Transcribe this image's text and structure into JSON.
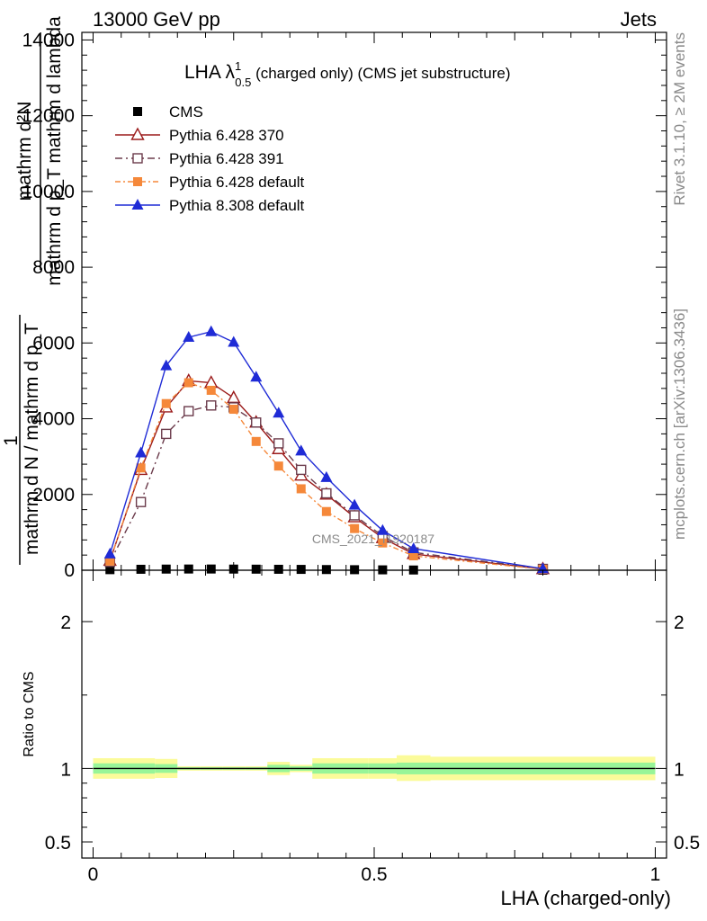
{
  "header": {
    "left": "13000 GeV pp",
    "right": "Jets"
  },
  "side_text": {
    "rivet": "Rivet 3.1.10, ≥ 2M events",
    "mcplots": "mcplots.cern.ch [arXiv:1306.3436]"
  },
  "watermark": "CMS_2021_I1920187",
  "plot_title": {
    "prefix": "LHA ",
    "lambda": "λ",
    "sup": "1",
    "sub": "0.5",
    "suffix": " (charged only) (CMS jet substructure)"
  },
  "ylabel_main": {
    "numerator": "mathrm d²N",
    "denominator": "mathrm d p_T mathrm d lambda",
    "numerator2": "1",
    "denominator2": "mathrm d N / mathrm d p_T"
  },
  "ylabel_ratio": "Ratio to CMS",
  "xlabel": "LHA (charged-only)",
  "colors": {
    "cms": "#000000",
    "py6_370": "#9b1b1b",
    "py6_391": "#6b3b4b",
    "py6_default": "#f5883a",
    "py8_default": "#1f2bd6",
    "band_inner": "#98f598",
    "band_outer": "#fbfb9a"
  },
  "chart_data": [
    {
      "type": "line",
      "xlim": [
        -0.02,
        1.02
      ],
      "ylim": [
        0,
        14200
      ],
      "xticks": [
        0,
        0.5,
        1
      ],
      "yticks": [
        0,
        2000,
        4000,
        6000,
        8000,
        10000,
        12000,
        14000
      ],
      "ytick_labels": [
        "0",
        "2000",
        "4000",
        "6000",
        "8000",
        "10000",
        "12000",
        "14000"
      ],
      "x": [
        0.03,
        0.085,
        0.13,
        0.17,
        0.21,
        0.25,
        0.29,
        0.33,
        0.37,
        0.415,
        0.465,
        0.515,
        0.57,
        0.8
      ],
      "series": [
        {
          "name": "CMS",
          "key": "cms",
          "marker": "square-filled",
          "dash": "",
          "values": [
            15,
            25,
            30,
            32,
            32,
            30,
            28,
            25,
            22,
            18,
            14,
            10,
            6,
            1
          ]
        },
        {
          "name": "Pythia 6.428 370",
          "key": "py6_370",
          "marker": "triangle-open",
          "dash": "",
          "values": [
            250,
            2650,
            4300,
            5000,
            4950,
            4550,
            3900,
            3200,
            2500,
            2000,
            1400,
            850,
            430,
            30
          ]
        },
        {
          "name": "Pythia 6.428 391",
          "key": "py6_391",
          "marker": "square-open",
          "dash": "8,4,2,4",
          "values": [
            220,
            1800,
            3600,
            4200,
            4350,
            4300,
            3900,
            3350,
            2650,
            2030,
            1450,
            900,
            470,
            35
          ]
        },
        {
          "name": "Pythia 6.428 default",
          "key": "py6_default",
          "marker": "square-filled",
          "dash": "6,3,2,3",
          "values": [
            240,
            2700,
            4400,
            4950,
            4750,
            4250,
            3400,
            2750,
            2150,
            1550,
            1100,
            720,
            380,
            25
          ]
        },
        {
          "name": "Pythia 8.308 default",
          "key": "py8_default",
          "marker": "triangle-filled",
          "dash": "",
          "values": [
            430,
            3100,
            5400,
            6150,
            6300,
            6020,
            5100,
            4150,
            3150,
            2450,
            1720,
            1050,
            570,
            40
          ]
        }
      ]
    },
    {
      "type": "area",
      "ylabel": "Ratio to CMS",
      "xlim": [
        -0.02,
        1.02
      ],
      "ylim": [
        0.39,
        2.35
      ],
      "xticks": [
        0,
        0.5,
        1
      ],
      "xtick_labels": [
        "0",
        "0.5",
        "1"
      ],
      "yticks": [
        0.5,
        1,
        2
      ],
      "ytick_labels": [
        "0.5",
        "1",
        "2"
      ],
      "bins": [
        0,
        0.06,
        0.11,
        0.15,
        0.19,
        0.23,
        0.27,
        0.31,
        0.35,
        0.39,
        0.44,
        0.49,
        0.54,
        0.6,
        1.0
      ],
      "inner_band": [
        [
          0.965,
          1.035
        ],
        [
          0.965,
          1.035
        ],
        [
          0.97,
          1.03
        ],
        [
          0.992,
          1.008
        ],
        [
          0.992,
          1.008
        ],
        [
          0.992,
          1.008
        ],
        [
          0.992,
          1.008
        ],
        [
          0.975,
          1.025
        ],
        [
          0.985,
          1.015
        ],
        [
          0.965,
          1.035
        ],
        [
          0.965,
          1.035
        ],
        [
          0.965,
          1.035
        ],
        [
          0.96,
          1.04
        ],
        [
          0.96,
          1.04
        ]
      ],
      "outer_band": [
        [
          0.93,
          1.07
        ],
        [
          0.93,
          1.07
        ],
        [
          0.935,
          1.065
        ],
        [
          0.985,
          1.015
        ],
        [
          0.985,
          1.015
        ],
        [
          0.985,
          1.015
        ],
        [
          0.985,
          1.015
        ],
        [
          0.955,
          1.045
        ],
        [
          0.975,
          1.025
        ],
        [
          0.93,
          1.07
        ],
        [
          0.93,
          1.07
        ],
        [
          0.93,
          1.07
        ],
        [
          0.915,
          1.09
        ],
        [
          0.92,
          1.08
        ]
      ]
    }
  ]
}
